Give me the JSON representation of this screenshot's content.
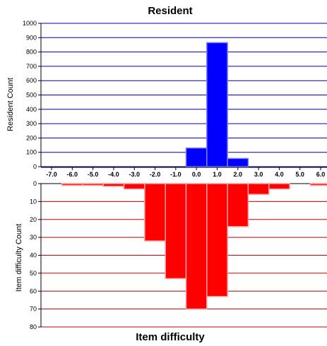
{
  "chart_data": {
    "type": "bar",
    "title": "Resident",
    "xlabel": "Item difficulty",
    "x_ticks": [
      "-7.0",
      "-6.0",
      "-5.0",
      "-4.0",
      "-3.0",
      "-2.0",
      "-1.0",
      "0.0",
      "1.0",
      "2.0",
      "3.0",
      "4.0",
      "5.0",
      "6.0"
    ],
    "xlim": [
      -7.0,
      6.0
    ],
    "bin_width": 0.5,
    "top": {
      "ylabel": "Resident Count",
      "ylim": [
        0,
        1000
      ],
      "y_ticks": [
        0,
        100,
        200,
        300,
        400,
        500,
        600,
        700,
        800,
        900,
        1000
      ],
      "color": "#0000ff",
      "grid_color": "#0000b0",
      "bins": [
        {
          "x": 0.0,
          "value": 130
        },
        {
          "x": 1.0,
          "value": 865
        },
        {
          "x": 2.0,
          "value": 57
        }
      ]
    },
    "bottom": {
      "ylabel": "Item difficulty Count",
      "ylim": [
        0,
        80
      ],
      "y_ticks": [
        0,
        10,
        20,
        30,
        40,
        50,
        60,
        70,
        80
      ],
      "color": "#ff0000",
      "grid_color": "#c00000",
      "bins": [
        {
          "x": -6.0,
          "value": 1
        },
        {
          "x": -5.0,
          "value": 1
        },
        {
          "x": -4.0,
          "value": 1.5
        },
        {
          "x": -3.0,
          "value": 3
        },
        {
          "x": -2.0,
          "value": 32
        },
        {
          "x": -1.0,
          "value": 53
        },
        {
          "x": 0.0,
          "value": 70
        },
        {
          "x": 1.0,
          "value": 63
        },
        {
          "x": 2.0,
          "value": 24
        },
        {
          "x": 3.0,
          "value": 6
        },
        {
          "x": 4.0,
          "value": 3
        },
        {
          "x": 6.0,
          "value": 1
        }
      ]
    }
  }
}
